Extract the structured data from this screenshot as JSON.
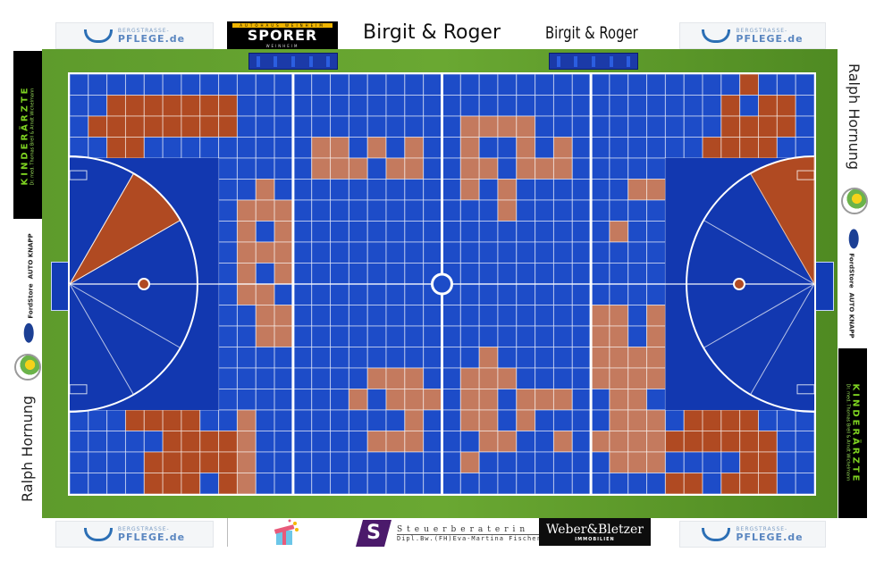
{
  "top_banner": {
    "left_sponsor": {
      "line1": "BERGSTRASSE-",
      "line2": "PFLEGE.de"
    },
    "sporer": {
      "top": "AUTOHAUS WEINHEIM",
      "name": "SPORER",
      "bottom": "WEINHEIM"
    },
    "text1": "Birgit & Roger",
    "text2": "Birgit & Roger",
    "right_sponsor": {
      "line1": "BERGSTRASSE-",
      "line2": "PFLEGE.de"
    }
  },
  "bottom_banner": {
    "left_sponsor": {
      "line1": "BERGSTRASSE-",
      "line2": "PFLEGE.de"
    },
    "gift_icon": "gift-icon",
    "steuer": {
      "logo": "S",
      "line1": "Steuerberaterin",
      "line2": "Dipl.Bw.(FH)Eva-Martina Fischer"
    },
    "weber": {
      "name": "Weber&Bletzer",
      "sub": "IMMOBILIEN"
    },
    "right_sponsor": {
      "line1": "BERGSTRASSE-",
      "line2": "PFLEGE.de"
    }
  },
  "left_side": {
    "kinder": {
      "title": "KINDERÄRZTE",
      "sub": "Dr. med. Thomas Brell & Arndt Wichelmann"
    },
    "ford": {
      "line1": "FordStore",
      "line2": "AUTO KNAPP"
    },
    "ralph": "Ralph Hornung"
  },
  "right_side": {
    "ralph": "Ralph Hornung",
    "ford": {
      "line1": "FordStore",
      "line2": "AUTO KNAPP"
    },
    "kinder": {
      "title": "KINDERÄRZTE",
      "sub": "Dr. med. Thomas Brell & Arndt Wichelmann"
    }
  },
  "court": {
    "columns": 40,
    "rows": 20,
    "colors": {
      "square": "#1d4cc8",
      "goal_area": "#1238b0",
      "sold_end": "#b04a22",
      "sold_mid": "#c47a5e",
      "line": "#ffffff",
      "grass": "#62a02e"
    },
    "sold_squares": [
      [
        36
      ],
      [
        2,
        3,
        4,
        5,
        6,
        7,
        8,
        35,
        37,
        38
      ],
      [
        1,
        2,
        3,
        4,
        5,
        6,
        7,
        8,
        21,
        22,
        23,
        24,
        35,
        36,
        37,
        38
      ],
      [
        2,
        3,
        13,
        14,
        16,
        18,
        21,
        24,
        26,
        34,
        35,
        36,
        37
      ],
      [
        13,
        14,
        15,
        17,
        18,
        21,
        22,
        24,
        25,
        26
      ],
      [
        10,
        21,
        23,
        30,
        31
      ],
      [
        9,
        10,
        11,
        23
      ],
      [
        9,
        11,
        29
      ],
      [
        9,
        10,
        11
      ],
      [
        9,
        11
      ],
      [
        9,
        10
      ],
      [
        10,
        11,
        28,
        29,
        31
      ],
      [
        10,
        11,
        28,
        29,
        31
      ],
      [
        22,
        28,
        29,
        30,
        31
      ],
      [
        16,
        17,
        18,
        21,
        22,
        23,
        28,
        29,
        30,
        31
      ],
      [
        15,
        17,
        18,
        19,
        21,
        22,
        24,
        25,
        26,
        29,
        30
      ],
      [
        3,
        4,
        5,
        6,
        9,
        18,
        21,
        22,
        24,
        29,
        30,
        31,
        33,
        34,
        35,
        36
      ],
      [
        5,
        6,
        7,
        8,
        9,
        16,
        17,
        18,
        22,
        23,
        26,
        28,
        29,
        30,
        31,
        32,
        33,
        34,
        35,
        36,
        37
      ],
      [
        4,
        5,
        6,
        7,
        8,
        9,
        21,
        29,
        30,
        31,
        36,
        37
      ],
      [
        4,
        5,
        6,
        8,
        9,
        32,
        33,
        35,
        36,
        37
      ]
    ],
    "sold_sectors": {
      "left": "30-60°",
      "right": "60-90°"
    }
  }
}
